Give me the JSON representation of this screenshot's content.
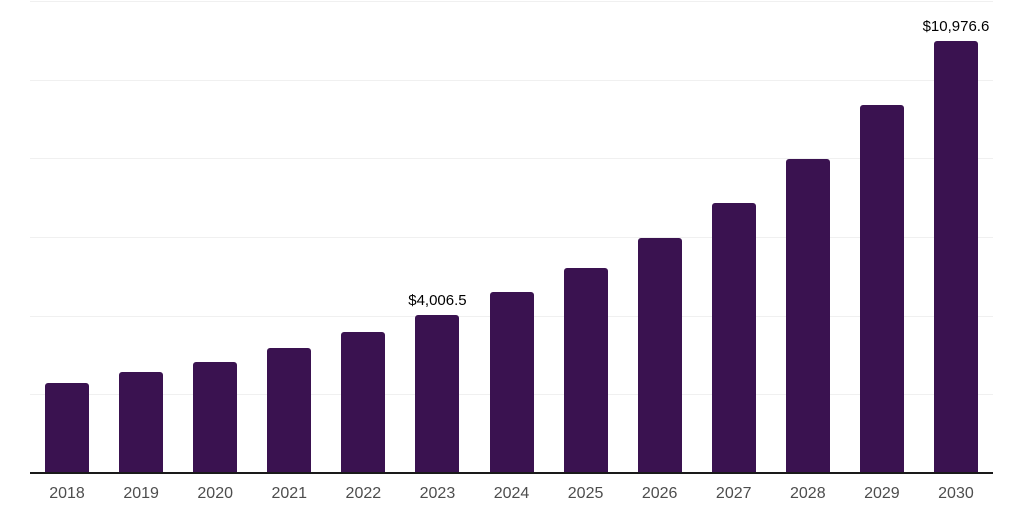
{
  "chart_data": {
    "type": "bar",
    "title": "",
    "xlabel": "",
    "ylabel": "",
    "categories": [
      "2018",
      "2019",
      "2020",
      "2021",
      "2022",
      "2023",
      "2024",
      "2025",
      "2026",
      "2027",
      "2028",
      "2029",
      "2030"
    ],
    "values": [
      2280,
      2560,
      2815,
      3170,
      3575,
      4006.5,
      4590,
      5220,
      5985,
      6870,
      7985,
      9355,
      10976.6
    ],
    "data_labels": [
      "",
      "",
      "",
      "",
      "",
      "$4,006.5",
      "",
      "",
      "",
      "",
      "",
      "",
      "$10,976.6"
    ],
    "ylim": [
      0,
      12000
    ],
    "gridline_step": 2000,
    "grid": true,
    "legend": "none",
    "colors": {
      "bar": "#3A1250",
      "grid": "#f0f0f0",
      "axis": "#1a1a1a",
      "tick_label": "#4d4d4d",
      "data_label": "#000000",
      "background": "#ffffff"
    }
  }
}
